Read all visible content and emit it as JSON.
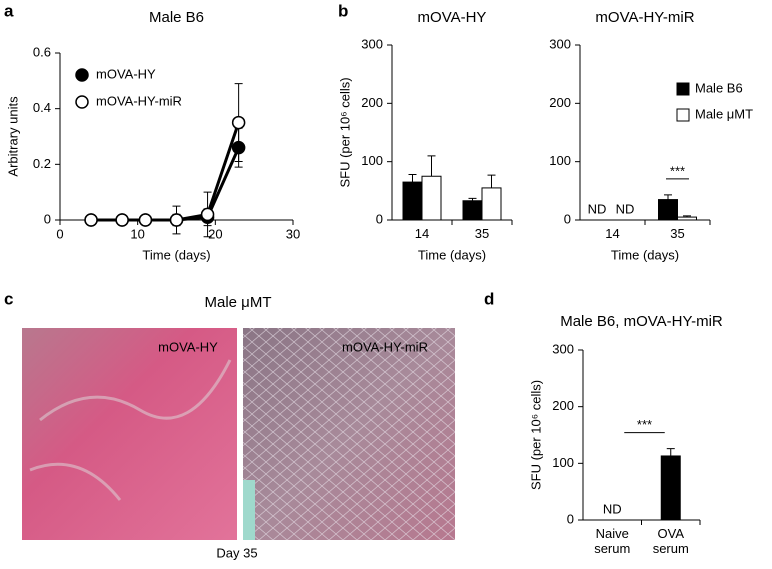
{
  "panel_labels": [
    "a",
    "b",
    "c",
    "d"
  ],
  "chart_data": [
    {
      "type": "line",
      "title": "Male B6",
      "y_label": "Arbitrary units",
      "x_label": "Time (days)",
      "x": [
        4,
        8,
        11,
        15,
        19,
        23
      ],
      "xlim": [
        0,
        30
      ],
      "xticks": [
        0,
        10,
        20,
        30
      ],
      "ylim": [
        0,
        0.6
      ],
      "yticks": [
        0,
        0.2,
        0.4,
        0.6
      ],
      "legend": "upper left",
      "series": [
        {
          "name": "mOVA-HY",
          "color": "#000000",
          "marker_fill": "#000000",
          "values": [
            0,
            0,
            0,
            0,
            0.01,
            0.26
          ],
          "errors": [
            0,
            0,
            0,
            0.02,
            0.03,
            0.07
          ]
        },
        {
          "name": "mOVA-HY-miR",
          "color": "#000000",
          "marker_fill": "#ffffff",
          "values": [
            0,
            0,
            0,
            0,
            0.02,
            0.35
          ],
          "errors": [
            0,
            0,
            0,
            0.05,
            0.08,
            0.14
          ]
        }
      ]
    },
    {
      "type": "bar",
      "title": "mOVA-HY",
      "y_label": "SFU (per 10⁶ cells)",
      "x_label": "Time (days)",
      "categories": [
        "14",
        "35"
      ],
      "ylim": [
        0,
        300
      ],
      "yticks": [
        0,
        100,
        200,
        300
      ],
      "series": [
        {
          "name": "Male B6",
          "color": "#000000",
          "values": [
            65,
            33
          ],
          "errors": [
            13,
            4
          ]
        },
        {
          "name": "Male μMT",
          "color": "#ffffff",
          "values": [
            75,
            55
          ],
          "errors": [
            35,
            22
          ]
        }
      ]
    },
    {
      "type": "bar",
      "title": "mOVA-HY-miR",
      "x_label": "Time (days)",
      "categories": [
        "14",
        "35"
      ],
      "ylim": [
        0,
        300
      ],
      "yticks": [
        0,
        100,
        200,
        300
      ],
      "legend": "upper right",
      "significance": "***",
      "series": [
        {
          "name": "Male B6",
          "color": "#000000",
          "values": [
            null,
            35
          ],
          "errors": [
            null,
            8
          ],
          "value_labels": [
            "ND",
            null
          ]
        },
        {
          "name": "Male μMT",
          "color": "#ffffff",
          "values": [
            null,
            5
          ],
          "errors": [
            null,
            2
          ],
          "value_labels": [
            "ND",
            null
          ]
        }
      ]
    },
    {
      "type": "bar",
      "title": "Male B6, mOVA-HY-miR",
      "y_label": "SFU (per 10⁶ cells)",
      "categories": [
        "Naive serum",
        "OVA serum"
      ],
      "ylim": [
        0,
        300
      ],
      "yticks": [
        0,
        100,
        200,
        300
      ],
      "significance": "***",
      "series": [
        {
          "name": "OVA serum",
          "color": "#000000",
          "values": [
            null,
            113
          ],
          "errors": [
            null,
            13
          ],
          "value_labels": [
            "ND",
            null
          ]
        }
      ]
    }
  ],
  "panel_c": {
    "title": "Male μMT",
    "caption": "Day 35",
    "images": [
      {
        "label": "mOVA-HY"
      },
      {
        "label": "mOVA-HY-miR"
      }
    ]
  }
}
